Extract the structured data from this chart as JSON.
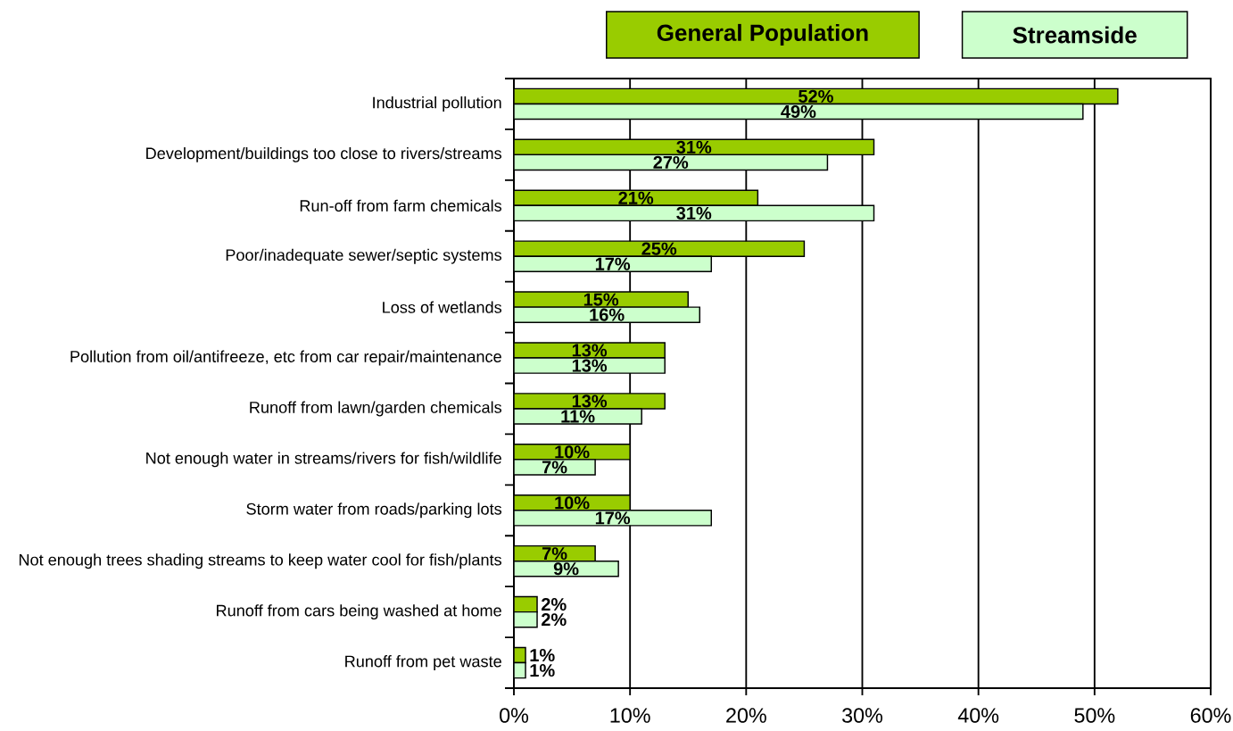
{
  "chart_data": {
    "type": "bar",
    "orientation": "horizontal",
    "categories": [
      "Industrial pollution",
      "Development/buildings too close to rivers/streams",
      "Run-off from farm chemicals",
      "Poor/inadequate sewer/septic systems",
      "Loss of wetlands",
      "Pollution from oil/antifreeze, etc from car repair/maintenance",
      "Runoff from lawn/garden chemicals",
      "Not enough water in streams/rivers for fish/wildlife",
      "Storm water from roads/parking lots",
      "Not enough trees shading streams to keep water cool for fish/plants",
      "Runoff from cars being washed at home",
      "Runoff from pet waste"
    ],
    "series": [
      {
        "name": "General Population",
        "color": "#99cc00",
        "values": [
          52,
          31,
          21,
          25,
          15,
          13,
          13,
          10,
          10,
          7,
          2,
          1
        ],
        "value_labels": [
          "52%",
          "31%",
          "21%",
          "25%",
          "15%",
          "13%",
          "13%",
          "10%",
          "10%",
          "7%",
          "2%",
          "1%"
        ]
      },
      {
        "name": "Streamside",
        "color": "#ccffcc",
        "values": [
          49,
          27,
          31,
          17,
          16,
          13,
          11,
          7,
          17,
          9,
          2,
          1
        ],
        "value_labels": [
          "49%",
          "27%",
          "31%",
          "17%",
          "16%",
          "13%",
          "11%",
          "7%",
          "17%",
          "9%",
          "2%",
          "1%"
        ]
      }
    ],
    "xlim": [
      0,
      60
    ],
    "xticks": [
      {
        "value": 0,
        "label": "0%"
      },
      {
        "value": 10,
        "label": "10%"
      },
      {
        "value": 20,
        "label": "20%"
      },
      {
        "value": 30,
        "label": "30%"
      },
      {
        "value": 40,
        "label": "40%"
      },
      {
        "value": 50,
        "label": "50%"
      },
      {
        "value": 60,
        "label": "60%"
      }
    ],
    "grid": "x",
    "legend": "top"
  }
}
